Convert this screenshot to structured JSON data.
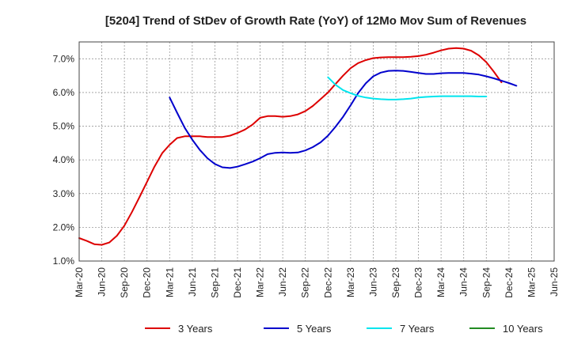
{
  "chart_data": {
    "type": "line",
    "title": "[5204]  Trend of StDev of Growth Rate (YoY) of 12Mo Mov Sum of Revenues",
    "xlabel": "",
    "ylabel": "",
    "ylim": [
      1.0,
      7.5
    ],
    "grid": true,
    "legend_position": "bottom",
    "categories": [
      "Mar-20",
      "Jun-20",
      "Sep-20",
      "Dec-20",
      "Mar-21",
      "Jun-21",
      "Sep-21",
      "Dec-21",
      "Mar-22",
      "Jun-22",
      "Sep-22",
      "Dec-22",
      "Mar-23",
      "Jun-23",
      "Sep-23",
      "Dec-23",
      "Mar-24",
      "Jun-24",
      "Sep-24",
      "Dec-24",
      "Mar-25",
      "Jun-25"
    ],
    "y_ticks": [
      1.0,
      2.0,
      3.0,
      4.0,
      5.0,
      6.0,
      7.0
    ],
    "y_tick_labels": [
      "1.0%",
      "2.0%",
      "3.0%",
      "4.0%",
      "5.0%",
      "6.0%",
      "7.0%"
    ],
    "series": [
      {
        "name": "3 Years",
        "color": "#dd0000",
        "points": [
          [
            0,
            1.68
          ],
          [
            0.33,
            1.6
          ],
          [
            0.67,
            1.5
          ],
          [
            1,
            1.48
          ],
          [
            1.33,
            1.55
          ],
          [
            1.67,
            1.75
          ],
          [
            2,
            2.05
          ],
          [
            2.33,
            2.45
          ],
          [
            2.67,
            2.9
          ],
          [
            3,
            3.35
          ],
          [
            3.33,
            3.8
          ],
          [
            3.67,
            4.2
          ],
          [
            4,
            4.45
          ],
          [
            4.33,
            4.65
          ],
          [
            4.67,
            4.7
          ],
          [
            5,
            4.7
          ],
          [
            5.33,
            4.7
          ],
          [
            5.67,
            4.68
          ],
          [
            6,
            4.68
          ],
          [
            6.33,
            4.68
          ],
          [
            6.67,
            4.72
          ],
          [
            7,
            4.8
          ],
          [
            7.33,
            4.9
          ],
          [
            7.67,
            5.05
          ],
          [
            8,
            5.25
          ],
          [
            8.33,
            5.3
          ],
          [
            8.67,
            5.3
          ],
          [
            9,
            5.28
          ],
          [
            9.33,
            5.3
          ],
          [
            9.67,
            5.35
          ],
          [
            10,
            5.45
          ],
          [
            10.33,
            5.6
          ],
          [
            10.67,
            5.8
          ],
          [
            11,
            6.0
          ],
          [
            11.33,
            6.25
          ],
          [
            11.67,
            6.5
          ],
          [
            12,
            6.72
          ],
          [
            12.33,
            6.87
          ],
          [
            12.67,
            6.96
          ],
          [
            13,
            7.02
          ],
          [
            13.33,
            7.04
          ],
          [
            13.67,
            7.05
          ],
          [
            14,
            7.05
          ],
          [
            14.33,
            7.05
          ],
          [
            14.67,
            7.06
          ],
          [
            15,
            7.08
          ],
          [
            15.33,
            7.12
          ],
          [
            15.67,
            7.18
          ],
          [
            16,
            7.25
          ],
          [
            16.33,
            7.3
          ],
          [
            16.67,
            7.32
          ],
          [
            17,
            7.3
          ],
          [
            17.33,
            7.24
          ],
          [
            17.67,
            7.1
          ],
          [
            18,
            6.9
          ],
          [
            18.33,
            6.62
          ],
          [
            18.67,
            6.3
          ]
        ]
      },
      {
        "name": "5 Years",
        "color": "#0000cc",
        "points": [
          [
            4,
            5.85
          ],
          [
            4.33,
            5.4
          ],
          [
            4.67,
            4.95
          ],
          [
            5,
            4.6
          ],
          [
            5.33,
            4.3
          ],
          [
            5.67,
            4.05
          ],
          [
            6,
            3.88
          ],
          [
            6.33,
            3.78
          ],
          [
            6.67,
            3.76
          ],
          [
            7,
            3.8
          ],
          [
            7.33,
            3.87
          ],
          [
            7.67,
            3.95
          ],
          [
            8,
            4.05
          ],
          [
            8.33,
            4.17
          ],
          [
            8.67,
            4.21
          ],
          [
            9,
            4.22
          ],
          [
            9.33,
            4.21
          ],
          [
            9.67,
            4.22
          ],
          [
            10,
            4.28
          ],
          [
            10.33,
            4.38
          ],
          [
            10.67,
            4.52
          ],
          [
            11,
            4.72
          ],
          [
            11.33,
            4.98
          ],
          [
            11.67,
            5.28
          ],
          [
            12,
            5.62
          ],
          [
            12.33,
            5.98
          ],
          [
            12.67,
            6.27
          ],
          [
            13,
            6.48
          ],
          [
            13.33,
            6.59
          ],
          [
            13.67,
            6.64
          ],
          [
            14,
            6.65
          ],
          [
            14.33,
            6.64
          ],
          [
            14.67,
            6.61
          ],
          [
            15,
            6.58
          ],
          [
            15.33,
            6.55
          ],
          [
            15.67,
            6.55
          ],
          [
            16,
            6.57
          ],
          [
            16.33,
            6.58
          ],
          [
            16.67,
            6.58
          ],
          [
            17,
            6.58
          ],
          [
            17.33,
            6.56
          ],
          [
            17.67,
            6.53
          ],
          [
            18,
            6.48
          ],
          [
            18.33,
            6.42
          ],
          [
            18.67,
            6.35
          ],
          [
            19,
            6.28
          ],
          [
            19.33,
            6.2
          ]
        ]
      },
      {
        "name": "7 Years",
        "color": "#00e5ee",
        "points": [
          [
            11,
            6.45
          ],
          [
            11.33,
            6.23
          ],
          [
            11.67,
            6.07
          ],
          [
            12,
            5.98
          ],
          [
            12.33,
            5.9
          ],
          [
            12.67,
            5.85
          ],
          [
            13,
            5.82
          ],
          [
            13.33,
            5.8
          ],
          [
            13.67,
            5.79
          ],
          [
            14,
            5.79
          ],
          [
            14.33,
            5.8
          ],
          [
            14.67,
            5.82
          ],
          [
            15,
            5.85
          ],
          [
            15.33,
            5.87
          ],
          [
            15.67,
            5.88
          ],
          [
            16,
            5.89
          ],
          [
            16.33,
            5.89
          ],
          [
            16.67,
            5.89
          ],
          [
            17,
            5.89
          ],
          [
            17.33,
            5.89
          ],
          [
            17.67,
            5.88
          ],
          [
            18,
            5.88
          ]
        ]
      },
      {
        "name": "10 Years",
        "color": "#228b22",
        "points": []
      }
    ]
  }
}
